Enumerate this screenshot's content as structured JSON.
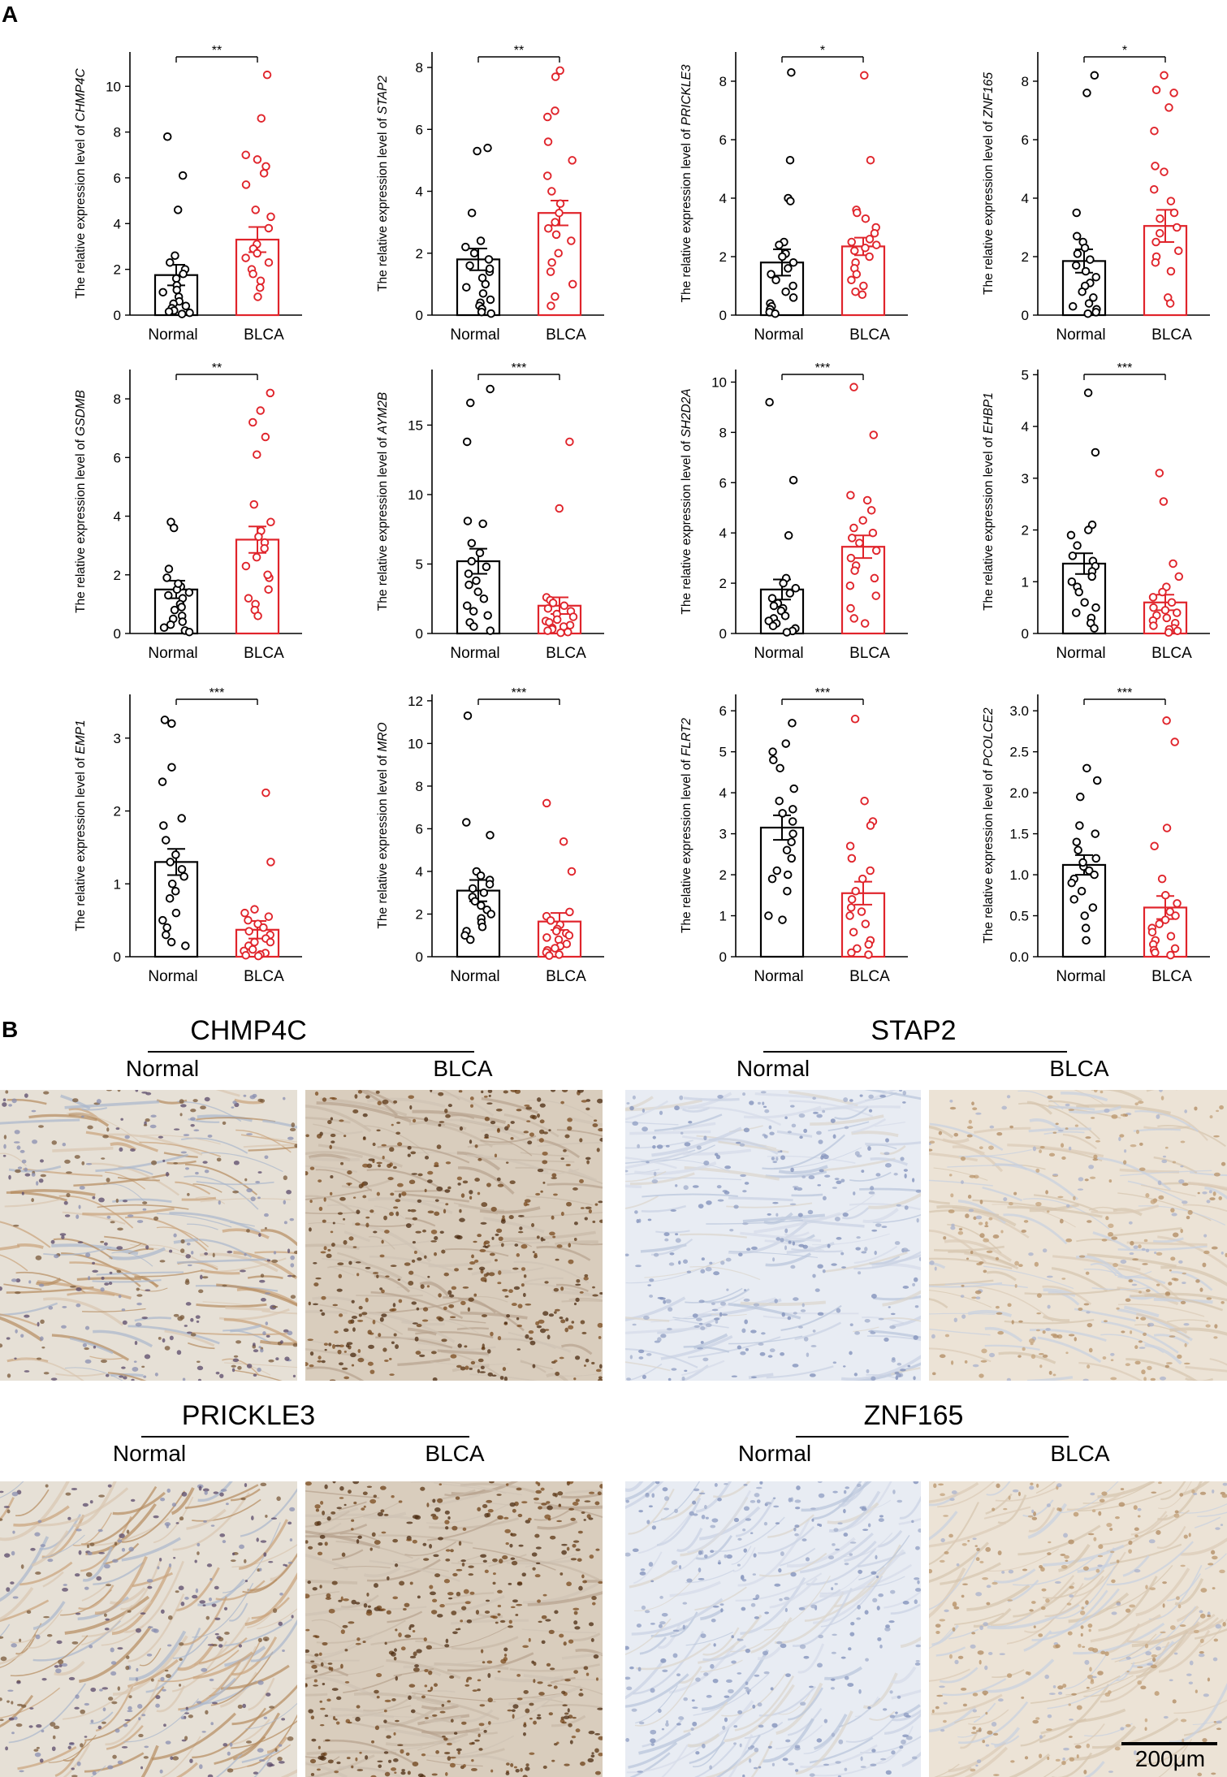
{
  "panels": {
    "a": "A",
    "b": "B"
  },
  "colors": {
    "normal": "#000000",
    "blca": "#e0242b",
    "stain_brown": "#8b5a2b",
    "stain_blue": "#9fb1cf"
  },
  "chart_data": [
    {
      "type": "bar",
      "gene": "CHMP4C",
      "ylabel_prefix": "The relative expression level of ",
      "categories": [
        "Normal",
        "BLCA"
      ],
      "sig": "**",
      "ylim": [
        0,
        11.5
      ],
      "yticks": [
        0,
        2,
        4,
        6,
        8,
        10
      ],
      "means": [
        1.75,
        3.3
      ],
      "sem": [
        0.45,
        0.55
      ],
      "points": [
        [
          7.8,
          6.1,
          4.6,
          2.6,
          2.3,
          2.0,
          1.8,
          1.6,
          1.3,
          1.1,
          1.0,
          0.8,
          0.6,
          0.5,
          0.4,
          0.3,
          0.2,
          0.15,
          0.1,
          0.05
        ],
        [
          10.5,
          8.6,
          7.0,
          6.8,
          6.5,
          6.2,
          5.7,
          4.6,
          4.3,
          3.8,
          3.1,
          2.9,
          2.7,
          2.5,
          2.3,
          2.0,
          1.8,
          1.5,
          1.2,
          0.8
        ]
      ]
    },
    {
      "type": "bar",
      "gene": "STAP2",
      "ylabel_prefix": "The relative expression level of ",
      "categories": [
        "Normal",
        "BLCA"
      ],
      "sig": "**",
      "ylim": [
        0,
        8.5
      ],
      "yticks": [
        0,
        2,
        4,
        6,
        8
      ],
      "means": [
        1.8,
        3.3
      ],
      "sem": [
        0.35,
        0.4
      ],
      "points": [
        [
          5.4,
          5.3,
          3.3,
          2.4,
          2.2,
          2.0,
          1.8,
          1.6,
          1.4,
          1.2,
          1.0,
          0.9,
          0.7,
          0.5,
          0.4,
          0.3,
          0.2,
          0.1,
          0.05,
          1.5
        ],
        [
          7.9,
          7.7,
          6.6,
          6.4,
          5.6,
          5.0,
          4.5,
          4.0,
          3.6,
          3.3,
          3.0,
          2.8,
          2.6,
          2.4,
          2.0,
          1.7,
          1.4,
          1.0,
          0.6,
          0.3
        ]
      ]
    },
    {
      "type": "bar",
      "gene": "PRICKLE3",
      "ylabel_prefix": "The relative expression level of ",
      "categories": [
        "Normal",
        "BLCA"
      ],
      "sig": "*",
      "ylim": [
        0,
        9
      ],
      "yticks": [
        0,
        2,
        4,
        6,
        8
      ],
      "means": [
        1.8,
        2.35
      ],
      "sem": [
        0.45,
        0.3
      ],
      "points": [
        [
          8.3,
          5.3,
          4.0,
          3.9,
          2.5,
          2.4,
          2.1,
          2.0,
          1.8,
          1.6,
          1.4,
          1.2,
          1.0,
          0.8,
          0.6,
          0.4,
          0.3,
          0.2,
          0.1,
          0.05
        ],
        [
          8.2,
          5.3,
          3.6,
          3.5,
          3.3,
          3.0,
          2.8,
          2.6,
          2.5,
          2.4,
          2.3,
          2.2,
          2.0,
          1.8,
          1.6,
          1.4,
          1.2,
          1.0,
          0.8,
          0.7
        ]
      ]
    },
    {
      "type": "bar",
      "gene": "ZNF165",
      "ylabel_prefix": "The relative expression level of ",
      "categories": [
        "Normal",
        "BLCA"
      ],
      "sig": "*",
      "ylim": [
        0,
        9
      ],
      "yticks": [
        0,
        2,
        4,
        6,
        8
      ],
      "means": [
        1.85,
        3.05
      ],
      "sem": [
        0.4,
        0.55
      ],
      "points": [
        [
          8.2,
          7.6,
          3.5,
          2.7,
          2.5,
          2.3,
          2.1,
          1.9,
          1.7,
          1.5,
          1.3,
          1.1,
          1.0,
          0.8,
          0.6,
          0.4,
          0.3,
          0.2,
          0.1,
          0.05
        ],
        [
          8.2,
          7.7,
          7.6,
          7.1,
          6.3,
          5.1,
          4.9,
          4.3,
          3.9,
          3.5,
          3.3,
          3.0,
          2.8,
          2.5,
          2.2,
          2.0,
          1.8,
          1.5,
          0.6,
          0.4
        ]
      ]
    },
    {
      "type": "bar",
      "gene": "GSDMB",
      "ylabel_prefix": "The relative expression level of ",
      "categories": [
        "Normal",
        "BLCA"
      ],
      "sig": "**",
      "ylim": [
        0,
        9
      ],
      "yticks": [
        0,
        2,
        4,
        6,
        8
      ],
      "means": [
        1.5,
        3.2
      ],
      "sem": [
        0.3,
        0.45
      ],
      "points": [
        [
          3.8,
          3.6,
          2.2,
          1.9,
          1.6,
          1.5,
          1.4,
          1.3,
          1.2,
          1.0,
          0.9,
          0.8,
          0.6,
          0.5,
          0.4,
          0.3,
          0.2,
          0.1,
          0.05,
          1.7
        ],
        [
          8.2,
          7.6,
          7.2,
          6.7,
          6.1,
          4.4,
          3.8,
          3.5,
          3.3,
          3.1,
          2.9,
          2.6,
          2.3,
          1.9,
          1.5,
          1.2,
          1.0,
          0.8,
          0.6,
          2.0
        ]
      ]
    },
    {
      "type": "bar",
      "gene": "AYM2B",
      "ylabel_prefix": "The relative expression level of ",
      "categories": [
        "Normal",
        "BLCA"
      ],
      "sig": "***",
      "ylim": [
        0,
        19
      ],
      "yticks": [
        0,
        5,
        10,
        15
      ],
      "means": [
        5.2,
        2.0
      ],
      "sem": [
        0.9,
        0.6
      ],
      "points": [
        [
          17.6,
          16.6,
          13.8,
          8.1,
          7.9,
          6.5,
          5.8,
          5.2,
          4.8,
          4.3,
          3.8,
          3.5,
          3.0,
          2.5,
          2.0,
          1.6,
          1.3,
          0.8,
          0.5,
          0.2
        ],
        [
          13.8,
          9.0,
          2.6,
          2.4,
          2.2,
          2.0,
          1.8,
          1.6,
          1.4,
          1.2,
          1.0,
          0.9,
          0.8,
          0.6,
          0.5,
          0.4,
          0.3,
          0.2,
          0.1,
          0.05
        ]
      ]
    },
    {
      "type": "bar",
      "gene": "SH2D2A",
      "ylabel_prefix": "The relative expression level of ",
      "categories": [
        "Normal",
        "BLCA"
      ],
      "sig": "***",
      "ylim": [
        0,
        10.5
      ],
      "yticks": [
        0,
        2,
        4,
        6,
        8,
        10
      ],
      "means": [
        1.75,
        3.45
      ],
      "sem": [
        0.4,
        0.45
      ],
      "points": [
        [
          9.2,
          6.1,
          3.9,
          2.2,
          2.0,
          1.8,
          1.6,
          1.4,
          1.2,
          1.1,
          1.0,
          0.9,
          0.7,
          0.6,
          0.5,
          0.4,
          0.3,
          0.2,
          0.1,
          0.05
        ],
        [
          9.8,
          7.9,
          5.5,
          5.3,
          4.9,
          4.5,
          4.2,
          4.0,
          3.8,
          3.6,
          3.3,
          3.0,
          2.7,
          2.5,
          2.2,
          1.9,
          1.5,
          1.0,
          0.6,
          0.4
        ]
      ]
    },
    {
      "type": "bar",
      "gene": "EHBP1",
      "ylabel_prefix": "The relative expression level of ",
      "categories": [
        "Normal",
        "BLCA"
      ],
      "sig": "***",
      "ylim": [
        0,
        5.1
      ],
      "yticks": [
        0,
        1,
        2,
        3,
        4,
        5
      ],
      "means": [
        1.35,
        0.6
      ],
      "sem": [
        0.2,
        0.15
      ],
      "points": [
        [
          4.65,
          3.5,
          2.1,
          2.0,
          1.9,
          1.7,
          1.5,
          1.4,
          1.3,
          1.2,
          1.1,
          1.0,
          0.9,
          0.8,
          0.6,
          0.5,
          0.4,
          0.3,
          0.2,
          0.1
        ],
        [
          3.1,
          2.55,
          1.35,
          1.1,
          0.9,
          0.8,
          0.7,
          0.6,
          0.5,
          0.45,
          0.4,
          0.35,
          0.3,
          0.25,
          0.2,
          0.15,
          0.1,
          0.08,
          0.05,
          0.02
        ]
      ]
    },
    {
      "type": "bar",
      "gene": "EMP1",
      "ylabel_prefix": "The relative expression level of ",
      "categories": [
        "Normal",
        "BLCA"
      ],
      "sig": "***",
      "ylim": [
        0,
        3.6
      ],
      "yticks": [
        0,
        1,
        2,
        3
      ],
      "means": [
        1.3,
        0.37
      ],
      "sem": [
        0.18,
        0.12
      ],
      "points": [
        [
          3.25,
          3.2,
          2.6,
          2.4,
          1.9,
          1.8,
          1.6,
          1.4,
          1.3,
          1.1,
          1.0,
          0.9,
          0.8,
          0.6,
          0.5,
          0.4,
          0.3,
          0.2,
          0.15,
          1.2
        ],
        [
          2.25,
          1.3,
          0.65,
          0.6,
          0.55,
          0.5,
          0.45,
          0.4,
          0.35,
          0.3,
          0.25,
          0.2,
          0.15,
          0.1,
          0.08,
          0.05,
          0.03,
          0.02,
          0.01,
          0.2
        ]
      ]
    },
    {
      "type": "bar",
      "gene": "MRO",
      "ylabel_prefix": "The relative expression level of ",
      "categories": [
        "Normal",
        "BLCA"
      ],
      "sig": "***",
      "ylim": [
        0,
        12.3
      ],
      "yticks": [
        0,
        2,
        4,
        6,
        8,
        10,
        12
      ],
      "means": [
        3.1,
        1.65
      ],
      "sem": [
        0.5,
        0.4
      ],
      "points": [
        [
          11.3,
          6.3,
          5.7,
          4.0,
          3.8,
          3.6,
          3.4,
          3.2,
          3.0,
          2.8,
          2.6,
          2.4,
          2.2,
          2.0,
          1.8,
          1.6,
          1.4,
          1.2,
          1.0,
          0.8
        ],
        [
          7.2,
          5.4,
          4.0,
          2.1,
          1.9,
          1.7,
          1.5,
          1.3,
          1.1,
          1.0,
          0.9,
          0.8,
          0.6,
          0.5,
          0.4,
          0.3,
          0.2,
          0.1,
          0.05,
          1.2
        ]
      ]
    },
    {
      "type": "bar",
      "gene": "FLRT2",
      "ylabel_prefix": "The relative expression level of ",
      "categories": [
        "Normal",
        "BLCA"
      ],
      "sig": "***",
      "ylim": [
        0,
        6.4
      ],
      "yticks": [
        0,
        1,
        2,
        3,
        4,
        5,
        6
      ],
      "means": [
        3.15,
        1.55
      ],
      "sem": [
        0.3,
        0.28
      ],
      "points": [
        [
          5.7,
          5.2,
          5.0,
          4.8,
          4.6,
          4.1,
          3.8,
          3.5,
          3.3,
          3.0,
          2.8,
          2.6,
          2.4,
          2.1,
          2.0,
          1.9,
          1.6,
          1.0,
          0.9,
          3.6
        ],
        [
          5.8,
          3.8,
          3.3,
          3.2,
          2.7,
          2.4,
          2.1,
          1.9,
          1.6,
          1.4,
          1.2,
          1.0,
          0.8,
          0.6,
          0.4,
          0.3,
          0.2,
          0.1,
          0.05,
          1.1
        ]
      ]
    },
    {
      "type": "bar",
      "gene": "PCOLCE2",
      "ylabel_prefix": "The relative expression level of ",
      "categories": [
        "Normal",
        "BLCA"
      ],
      "sig": "***",
      "ylim": [
        0,
        3.2
      ],
      "yticks": [
        0.0,
        0.5,
        1.0,
        1.5,
        2.0,
        2.5,
        3.0
      ],
      "tick_decimals": 1,
      "means": [
        1.12,
        0.6
      ],
      "sem": [
        0.12,
        0.14
      ],
      "points": [
        [
          2.3,
          2.15,
          1.95,
          1.6,
          1.5,
          1.4,
          1.3,
          1.2,
          1.1,
          1.05,
          1.0,
          0.95,
          0.9,
          0.8,
          0.7,
          0.6,
          0.5,
          0.35,
          0.2,
          1.15
        ],
        [
          2.88,
          2.62,
          1.57,
          1.35,
          0.95,
          0.75,
          0.65,
          0.55,
          0.45,
          0.4,
          0.35,
          0.3,
          0.25,
          0.2,
          0.15,
          0.1,
          0.08,
          0.05,
          0.02,
          0.5
        ]
      ]
    }
  ],
  "ihc": [
    {
      "title": "CHMP4C",
      "normal_label": "Normal",
      "blca_label": "BLCA",
      "normal_stain": "mixed",
      "blca_stain": "dark"
    },
    {
      "title": "STAP2",
      "normal_label": "Normal",
      "blca_label": "BLCA",
      "normal_stain": "blue",
      "blca_stain": "light"
    },
    {
      "title": "PRICKLE3",
      "normal_label": "Normal",
      "blca_label": "BLCA",
      "normal_stain": "mixed",
      "blca_stain": "dark"
    },
    {
      "title": "ZNF165",
      "normal_label": "Normal",
      "blca_label": "BLCA",
      "normal_stain": "blue",
      "blca_stain": "light"
    }
  ],
  "scale_bar": {
    "label": "200μm"
  }
}
